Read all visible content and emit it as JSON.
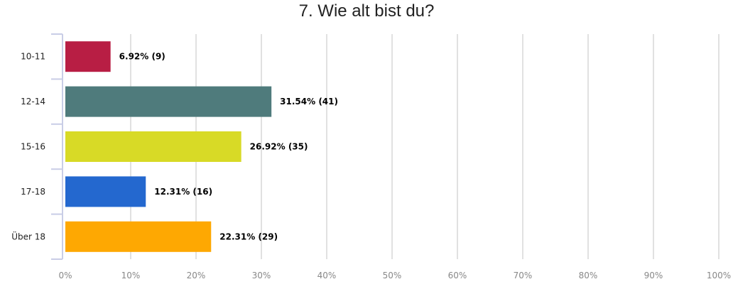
{
  "chart_data": {
    "type": "bar",
    "orientation": "horizontal",
    "title": "7. Wie alt bist du?",
    "categories": [
      "10-11",
      "12-14",
      "15-16",
      "17-18",
      "Über 18"
    ],
    "values": [
      6.92,
      31.54,
      26.92,
      12.31,
      22.31
    ],
    "counts": [
      9,
      41,
      35,
      16,
      29
    ],
    "data_labels": [
      "6.92% (9)",
      "31.54% (41)",
      "26.92% (35)",
      "12.31% (16)",
      "22.31% (29)"
    ],
    "colors": [
      "#b81e44",
      "#4f7b7c",
      "#d8da26",
      "#2468cf",
      "#fea802"
    ],
    "xlim": [
      0,
      100
    ],
    "x_ticks": [
      0,
      10,
      20,
      30,
      40,
      50,
      60,
      70,
      80,
      90,
      100
    ],
    "x_tick_labels": [
      "0%",
      "10%",
      "20%",
      "30%",
      "40%",
      "50%",
      "60%",
      "70%",
      "80%",
      "90%",
      "100%"
    ],
    "grid": true,
    "legend": "none"
  }
}
